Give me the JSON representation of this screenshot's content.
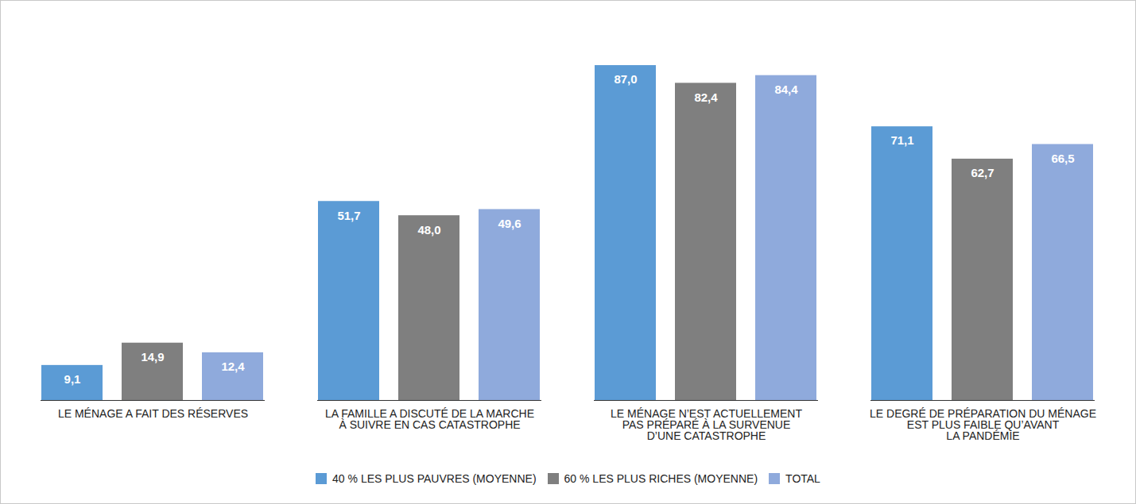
{
  "chart_data": {
    "type": "bar",
    "categories": [
      "LE MÉNAGE A FAIT DES RÉSERVES",
      "LA FAMILLE A DISCUTÉ DE LA MARCHE\nÀ SUIVRE EN CAS CATASTROPHE",
      "LE MÉNAGE N’EST ACTUELLEMENT\nPAS PRÉPARÉ À LA SURVENUE\nD’UNE CATASTROPHE",
      "LE DEGRÉ DE PRÉPARATION DU MÉNAGE\nEST PLUS FAIBLE QU’AVANT\nLA PANDÉMIE"
    ],
    "series": [
      {
        "name": "40 % LES PLUS PAUVRES (MOYENNE)",
        "color": "#5b9bd5",
        "values": [
          9.1,
          51.7,
          87.0,
          71.1
        ],
        "value_labels": [
          "9,1",
          "51,7",
          "87,0",
          "71,1"
        ]
      },
      {
        "name": "60 % LES PLUS RICHES (MOYENNE)",
        "color": "#7f7f7f",
        "values": [
          14.9,
          48.0,
          82.4,
          62.7
        ],
        "value_labels": [
          "14,9",
          "48,0",
          "82,4",
          "62,7"
        ]
      },
      {
        "name": "TOTAL",
        "color": "#8faadc",
        "values": [
          12.4,
          49.6,
          84.4,
          66.5
        ],
        "value_labels": [
          "12,4",
          "49,6",
          "84,4",
          "66,5"
        ]
      }
    ],
    "ylim": [
      0,
      100
    ],
    "yticks": [],
    "tick_labels": "x",
    "data_labels": true,
    "legend": "bottom",
    "grid": false
  }
}
